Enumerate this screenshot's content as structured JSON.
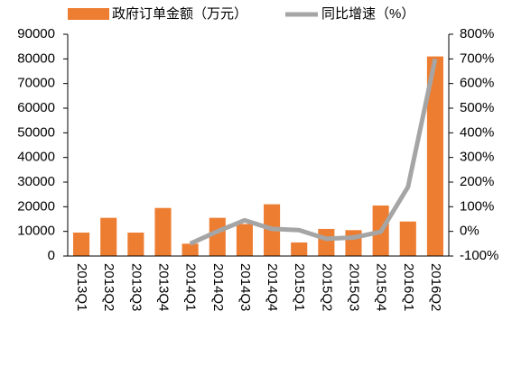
{
  "chart_data": {
    "type": "bar_line",
    "categories": [
      "2013Q1",
      "2013Q2",
      "2013Q3",
      "2013Q4",
      "2014Q1",
      "2014Q2",
      "2014Q3",
      "2014Q4",
      "2015Q1",
      "2015Q2",
      "2015Q3",
      "2015Q4",
      "2016Q1",
      "2016Q2"
    ],
    "series": [
      {
        "name": "政府订单金额（万元）",
        "color": "#ED7D31",
        "type": "bar",
        "values": [
          9500,
          15500,
          9500,
          19500,
          5000,
          15500,
          13000,
          21000,
          5500,
          11000,
          10500,
          20500,
          14000,
          81000
        ]
      },
      {
        "name": "同比增速（%）",
        "color": "#A5A5A5",
        "type": "line",
        "axis": "y2",
        "values": [
          null,
          null,
          null,
          null,
          -50,
          0,
          45,
          10,
          5,
          -30,
          -25,
          -2,
          180,
          700
        ]
      }
    ],
    "ylim": [
      0,
      90000
    ],
    "yticks": [
      0,
      10000,
      20000,
      30000,
      40000,
      50000,
      60000,
      70000,
      80000,
      90000
    ],
    "y2lim": [
      -100,
      800
    ],
    "y2ticks": [
      {
        "value": -100,
        "label": "-100%"
      },
      {
        "value": 0,
        "label": "0%"
      },
      {
        "value": 100,
        "label": "100%"
      },
      {
        "value": 200,
        "label": "200%"
      },
      {
        "value": 300,
        "label": "300%"
      },
      {
        "value": 400,
        "label": "400%"
      },
      {
        "value": 500,
        "label": "500%"
      },
      {
        "value": 600,
        "label": "600%"
      },
      {
        "value": 700,
        "label": "700%"
      },
      {
        "value": 800,
        "label": "800%"
      }
    ],
    "legend": "top"
  }
}
